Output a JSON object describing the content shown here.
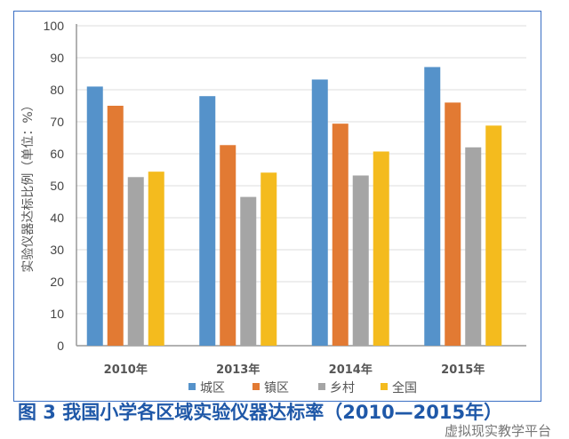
{
  "chart_data": {
    "type": "bar",
    "title": "",
    "xlabel": "",
    "ylabel": "实验仪器达标比例（单位：%）",
    "ylim": [
      0,
      100
    ],
    "yticks": [
      0,
      10,
      20,
      30,
      40,
      50,
      60,
      70,
      80,
      90,
      100
    ],
    "grid": true,
    "legend_position": "bottom",
    "categories": [
      "2010年",
      "2013年",
      "2014年",
      "2015年"
    ],
    "series": [
      {
        "name": "城区",
        "color": "#5592ca",
        "values": [
          81.0,
          78.0,
          83.2,
          87.1
        ]
      },
      {
        "name": "镇区",
        "color": "#e27a33",
        "values": [
          75.0,
          62.7,
          69.4,
          76.0
        ]
      },
      {
        "name": "乡村",
        "color": "#a5a5a5",
        "values": [
          52.7,
          46.5,
          53.2,
          62.0
        ]
      },
      {
        "name": "全国",
        "color": "#f4bb1e",
        "values": [
          54.4,
          54.1,
          60.7,
          68.8
        ]
      }
    ]
  },
  "caption": "图 3  我国小学各区域实验仪器达标率（2010—2015年）",
  "watermark": "虚拟现实教学平台"
}
